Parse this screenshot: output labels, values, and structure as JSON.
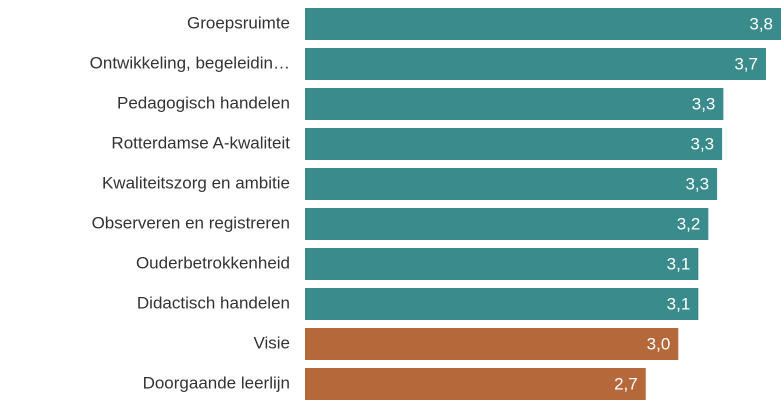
{
  "chart_data": {
    "type": "bar",
    "orientation": "horizontal",
    "categories": [
      "Groepsruimte",
      "Ontwikkeling, begeleidin…",
      "Pedagogisch handelen",
      "Rotterdamse A-kwaliteit",
      "Kwaliteitszorg en ambitie",
      "Observeren en registreren",
      "Ouderbetrokkenheid",
      "Didactisch handelen",
      "Visie",
      "Doorgaande leerlijn"
    ],
    "values": [
      3.8,
      3.68,
      3.34,
      3.33,
      3.29,
      3.22,
      3.14,
      3.14,
      2.98,
      2.72
    ],
    "value_labels": [
      "3,8",
      "3,7",
      "3,3",
      "3,3",
      "3,3",
      "3,2",
      "3,1",
      "3,1",
      "3,0",
      "2,7"
    ],
    "colors": [
      "#3a8b8c",
      "#3a8b8c",
      "#3a8b8c",
      "#3a8b8c",
      "#3a8b8c",
      "#3a8b8c",
      "#3a8b8c",
      "#3a8b8c",
      "#b5683a",
      "#b5683a"
    ]
  }
}
